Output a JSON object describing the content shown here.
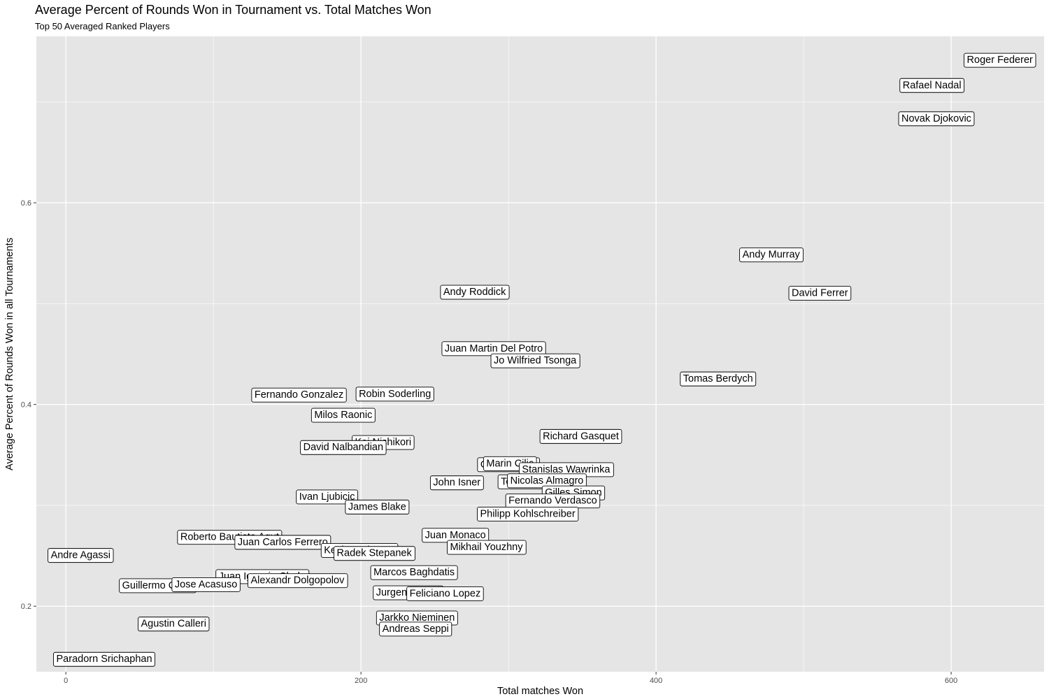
{
  "chart_data": {
    "type": "scatter",
    "title": "Average Percent of Rounds Won in Tournament vs. Total Matches Won",
    "subtitle": "Top 50 Averaged Ranked Players",
    "xlabel": "Total matches Won",
    "ylabel": "Average Percent of Rounds Won in all Tournaments",
    "xlim": [
      -20,
      663
    ],
    "ylim": [
      0.135,
      0.765
    ],
    "x_ticks": [
      0,
      200,
      400,
      600
    ],
    "y_ticks": [
      0.2,
      0.4,
      0.6
    ],
    "grid": true,
    "point_style": "text labels in white boxes",
    "colors": {
      "panel": "#e5e5e5",
      "grid": "#ffffff",
      "label_fill": "#ffffff",
      "label_border": "#000000"
    },
    "points": [
      {
        "label": "Roger Federer",
        "x": 633,
        "y": 0.742
      },
      {
        "label": "Rafael Nadal",
        "x": 587,
        "y": 0.717
      },
      {
        "label": "Novak Djokovic",
        "x": 590,
        "y": 0.684
      },
      {
        "label": "Andy Murray",
        "x": 478,
        "y": 0.549
      },
      {
        "label": "David Ferrer",
        "x": 511,
        "y": 0.511
      },
      {
        "label": "Andy Roddick",
        "x": 277,
        "y": 0.512
      },
      {
        "label": "Juan Martin Del Potro",
        "x": 290,
        "y": 0.456
      },
      {
        "label": "Jo Wilfried Tsonga",
        "x": 318,
        "y": 0.444
      },
      {
        "label": "Tomas Berdych",
        "x": 442,
        "y": 0.426
      },
      {
        "label": "Fernando Gonzalez",
        "x": 158,
        "y": 0.41
      },
      {
        "label": "Robin Soderling",
        "x": 223,
        "y": 0.411
      },
      {
        "label": "Milos Raonic",
        "x": 188,
        "y": 0.39
      },
      {
        "label": "Richard Gasquet",
        "x": 349,
        "y": 0.369
      },
      {
        "label": "Kei Nishikori",
        "x": 215,
        "y": 0.363
      },
      {
        "label": "David Nalbandian",
        "x": 188,
        "y": 0.358
      },
      {
        "label": "Gael Monfils",
        "x": 300,
        "y": 0.341
      },
      {
        "label": "Marin Cilic",
        "x": 301,
        "y": 0.342
      },
      {
        "label": "Stanislas Wawrinka",
        "x": 339,
        "y": 0.336
      },
      {
        "label": "Tommy Robredo",
        "x": 320,
        "y": 0.324
      },
      {
        "label": "Nicolas Almagro",
        "x": 326,
        "y": 0.325
      },
      {
        "label": "John Isner",
        "x": 265,
        "y": 0.323
      },
      {
        "label": "Gilles Simon",
        "x": 344,
        "y": 0.313
      },
      {
        "label": "Fernando Verdasco",
        "x": 330,
        "y": 0.305
      },
      {
        "label": "Philipp Kohlschreiber",
        "x": 313,
        "y": 0.292
      },
      {
        "label": "Ivan Ljubicic",
        "x": 177,
        "y": 0.309
      },
      {
        "label": "James Blake",
        "x": 211,
        "y": 0.299
      },
      {
        "label": "Roberto Bautista Agut",
        "x": 111,
        "y": 0.269
      },
      {
        "label": "Juan Carlos Ferrero",
        "x": 147,
        "y": 0.264
      },
      {
        "label": "Juan Monaco",
        "x": 264,
        "y": 0.271
      },
      {
        "label": "Mikhail Youzhny",
        "x": 285,
        "y": 0.259
      },
      {
        "label": "Andre Agassi",
        "x": 10,
        "y": 0.251
      },
      {
        "label": "Kevin Anderson",
        "x": 199,
        "y": 0.256
      },
      {
        "label": "Radek Stepanek",
        "x": 209,
        "y": 0.253
      },
      {
        "label": "Marcos Baghdatis",
        "x": 236,
        "y": 0.234
      },
      {
        "label": "Juan Ignacio Chela",
        "x": 133,
        "y": 0.23
      },
      {
        "label": "Alexandr Dolgopolov",
        "x": 157,
        "y": 0.226
      },
      {
        "label": "Guillermo Coria",
        "x": 62,
        "y": 0.221
      },
      {
        "label": "Jose Acasuso",
        "x": 95,
        "y": 0.222
      },
      {
        "label": "Jurgen Melzer",
        "x": 232,
        "y": 0.214
      },
      {
        "label": "Feliciano Lopez",
        "x": 257,
        "y": 0.213
      },
      {
        "label": "Jarkko Nieminen",
        "x": 238,
        "y": 0.189
      },
      {
        "label": "Andreas Seppi",
        "x": 237,
        "y": 0.178
      },
      {
        "label": "Agustin Calleri",
        "x": 73,
        "y": 0.183
      },
      {
        "label": "Paradorn Srichaphan",
        "x": 26,
        "y": 0.148
      }
    ]
  }
}
